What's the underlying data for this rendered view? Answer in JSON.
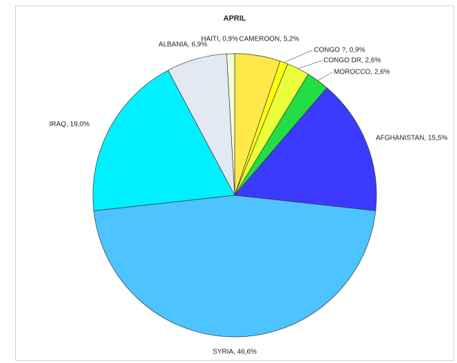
{
  "chart_data": {
    "type": "pie",
    "title": "APRIL",
    "values": [
      5.2,
      0.9,
      2.6,
      2.6,
      15.5,
      46.6,
      19.0,
      6.9,
      0.9
    ],
    "value_labels": [
      "CAMEROON, 5,2%",
      "CONGO ?, 0,9%",
      "CONGO DR, 2,6%",
      "MOROCCO, 2,6%",
      "AFGHANISTAN, 15,5%",
      "SYRIA, 46,6%",
      "IRAQ, 19,0%",
      "ALBANIA, 6,9%",
      "HAITI, 0,9%"
    ],
    "colors": [
      "#ffe84a",
      "#ffff10",
      "#eaff3a",
      "#22dd44",
      "#3b3bff",
      "#4dc3ff",
      "#00f0ff",
      "#e3e9f3",
      "#f2ffd6"
    ]
  }
}
